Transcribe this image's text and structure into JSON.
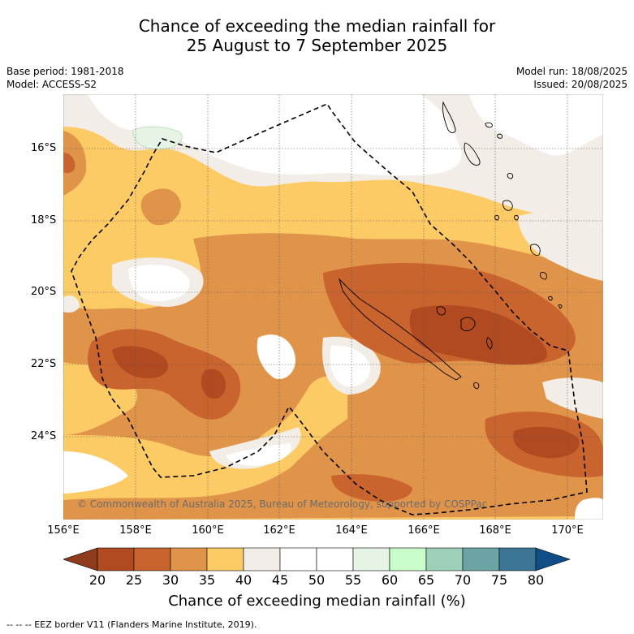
{
  "title_line1": "Chance of exceeding the median rainfall for",
  "title_line2": "25 August to 7 September 2025",
  "meta_left": {
    "base_period": "Base period: 1981-2018",
    "model": "Model: ACCESS-S2"
  },
  "meta_right": {
    "model_run": "Model run: 18/08/2025",
    "issued": "Issued: 20/08/2025"
  },
  "map": {
    "lat_labels": [
      "16°S",
      "18°S",
      "20°S",
      "22°S",
      "24°S"
    ],
    "lon_labels": [
      "156°E",
      "158°E",
      "160°E",
      "162°E",
      "164°E",
      "166°E",
      "168°E",
      "170°E"
    ],
    "lon_range": [
      156,
      171
    ],
    "lat_range": [
      -14.8,
      -26.6
    ],
    "credit": "© Commonwealth of Australia 2025, Bureau of Meteorology, supported by COSPPac",
    "eez_border_label": "EEZ border V11"
  },
  "colorbar": {
    "labels": [
      "20",
      "25",
      "30",
      "35",
      "40",
      "45",
      "50",
      "55",
      "60",
      "65",
      "70",
      "75",
      "80"
    ],
    "colors": [
      "#b14a21",
      "#c9642e",
      "#e0944a",
      "#fdcb66",
      "#f2ede6",
      "#ffffff",
      "#ffffff",
      "#e6f4e5",
      "#c9fdc9",
      "#9ed0b9",
      "#6ca3a5",
      "#3d7597"
    ],
    "under_color": "#8f3b1e",
    "over_color": "#0f4d87",
    "title": "Chance of exceeding median rainfall (%)"
  },
  "footer": "--  --  -- EEZ border V11 (Flanders Marine Institute, 2019)."
}
